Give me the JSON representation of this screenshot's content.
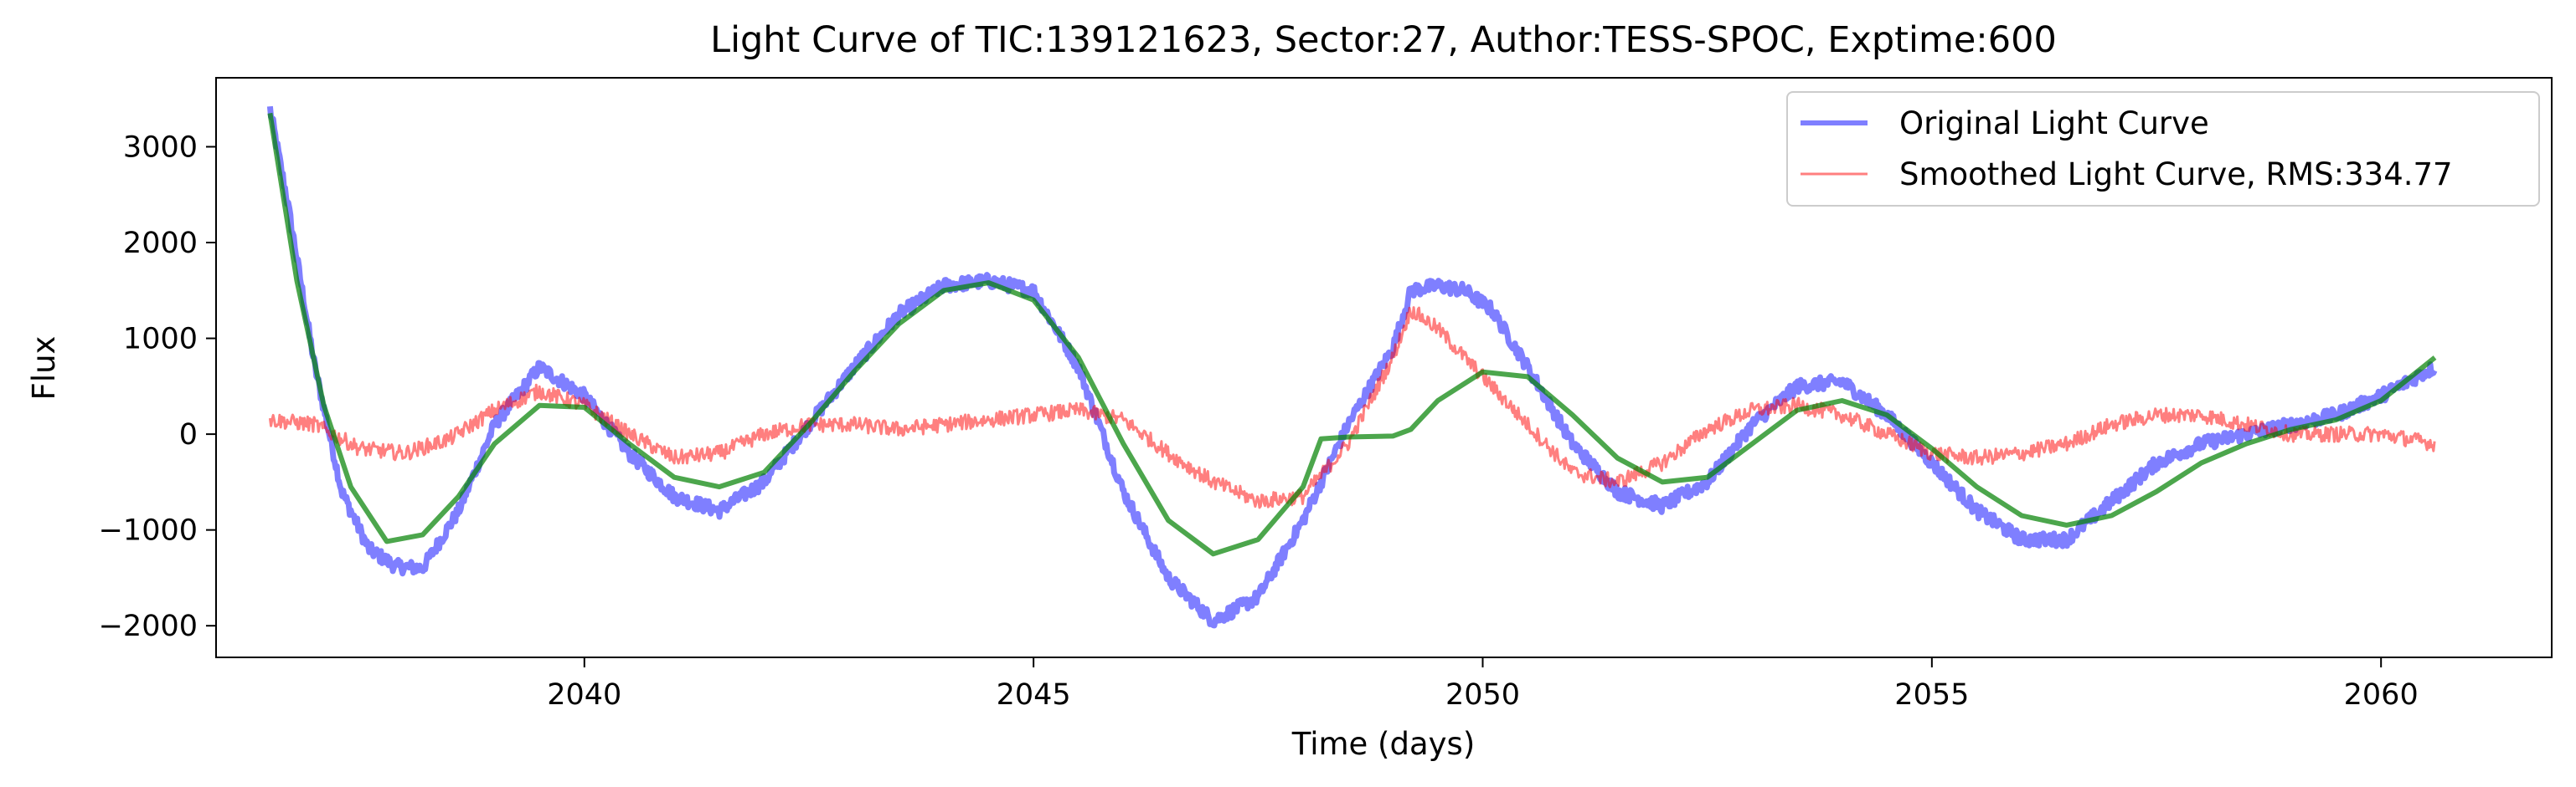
{
  "chart_data": {
    "type": "line",
    "title": "Light Curve of TIC:139121623, Sector:27, Author:TESS-SPOC, Exptime:600",
    "xlabel": "Time (days)",
    "ylabel": "Flux",
    "xlim": [
      2035.9,
      2061.9
    ],
    "ylim": [
      -2330,
      3720
    ],
    "x_ticks": [
      2040,
      2045,
      2050,
      2055,
      2060
    ],
    "x_tick_labels": [
      "2040",
      "2045",
      "2050",
      "2055",
      "2060"
    ],
    "y_ticks": [
      -2000,
      -1000,
      0,
      1000,
      2000,
      3000
    ],
    "y_tick_labels": [
      "−2000",
      "−1000",
      "0",
      "1000",
      "2000",
      "3000"
    ],
    "grid": false,
    "legend_position": "upper right",
    "colors": {
      "original": "#0000ff",
      "smoothed": "#ff0000",
      "trend": "#008000"
    },
    "series": [
      {
        "name": "Original Light Curve",
        "color": "#0000ff",
        "noise": 70,
        "x": [
          2036.5,
          2036.7,
          2037.0,
          2037.3,
          2037.6,
          2037.9,
          2038.2,
          2038.6,
          2039.0,
          2039.5,
          2040.0,
          2040.5,
          2041.0,
          2041.5,
          2042.0,
          2042.5,
          2043.0,
          2043.5,
          2044.0,
          2044.5,
          2045.0,
          2045.5,
          2046.0,
          2046.5,
          2047.0,
          2047.5,
          2048.0,
          2048.5,
          2049.0,
          2049.2,
          2049.5,
          2049.8,
          2050.1,
          2050.5,
          2051.0,
          2051.5,
          2052.0,
          2052.5,
          2053.0,
          2053.5,
          2054.0,
          2054.5,
          2055.0,
          2055.5,
          2056.0,
          2056.5,
          2057.0,
          2057.5,
          2058.0,
          2058.5,
          2059.0,
          2059.5,
          2060.0,
          2060.6
        ],
        "y": [
          3400,
          2400,
          700,
          -600,
          -1200,
          -1380,
          -1400,
          -800,
          100,
          700,
          400,
          -200,
          -650,
          -800,
          -500,
          100,
          700,
          1250,
          1550,
          1600,
          1500,
          700,
          -600,
          -1500,
          -1950,
          -1700,
          -900,
          100,
          900,
          1500,
          1550,
          1500,
          1300,
          700,
          -100,
          -600,
          -750,
          -500,
          100,
          500,
          550,
          200,
          -300,
          -800,
          -1100,
          -1100,
          -700,
          -300,
          -100,
          0,
          100,
          200,
          400,
          700
        ]
      },
      {
        "name": "Smoothed Light Curve, RMS:334.77",
        "color": "#ff0000",
        "noise": 80,
        "x": [
          2036.5,
          2037.0,
          2037.5,
          2038.0,
          2038.5,
          2039.0,
          2039.5,
          2040.0,
          2040.5,
          2041.0,
          2041.5,
          2042.0,
          2042.5,
          2043.0,
          2043.5,
          2044.0,
          2044.5,
          2045.0,
          2045.5,
          2046.0,
          2046.5,
          2047.0,
          2047.5,
          2048.0,
          2048.5,
          2049.0,
          2049.2,
          2049.5,
          2050.0,
          2050.5,
          2051.0,
          2051.5,
          2052.0,
          2052.5,
          2053.0,
          2053.5,
          2054.0,
          2054.5,
          2055.0,
          2055.5,
          2056.0,
          2056.5,
          2057.0,
          2057.5,
          2058.0,
          2058.5,
          2059.0,
          2059.5,
          2060.0,
          2060.6
        ],
        "y": [
          150,
          100,
          -150,
          -200,
          -50,
          250,
          450,
          300,
          0,
          -250,
          -200,
          0,
          100,
          100,
          50,
          100,
          150,
          200,
          250,
          150,
          -200,
          -500,
          -700,
          -650,
          -100,
          800,
          1300,
          1100,
          600,
          100,
          -400,
          -500,
          -300,
          50,
          250,
          300,
          200,
          0,
          -200,
          -250,
          -200,
          -100,
          100,
          200,
          200,
          100,
          0,
          0,
          0,
          -100
        ]
      },
      {
        "name": "",
        "color": "#008000",
        "noise": 0,
        "x": [
          2036.5,
          2036.8,
          2037.1,
          2037.4,
          2037.8,
          2038.2,
          2038.6,
          2039.0,
          2039.5,
          2040.0,
          2040.5,
          2041.0,
          2041.5,
          2042.0,
          2042.5,
          2043.0,
          2043.5,
          2044.0,
          2044.5,
          2045.0,
          2045.5,
          2046.0,
          2046.5,
          2047.0,
          2047.5,
          2048.0,
          2048.2,
          2048.5,
          2049.0,
          2049.2,
          2049.5,
          2050.0,
          2050.5,
          2051.0,
          2051.5,
          2052.0,
          2052.5,
          2053.0,
          2053.5,
          2054.0,
          2054.5,
          2055.0,
          2055.5,
          2056.0,
          2056.5,
          2057.0,
          2057.5,
          2058.0,
          2058.5,
          2059.0,
          2059.5,
          2060.0,
          2060.6
        ],
        "y": [
          3350,
          1600,
          300,
          -550,
          -1120,
          -1050,
          -650,
          -100,
          300,
          280,
          -100,
          -450,
          -550,
          -400,
          100,
          650,
          1150,
          1500,
          1580,
          1400,
          800,
          -100,
          -900,
          -1250,
          -1100,
          -550,
          -50,
          -30,
          -20,
          50,
          350,
          650,
          600,
          200,
          -250,
          -500,
          -450,
          -100,
          250,
          350,
          200,
          -150,
          -550,
          -850,
          -950,
          -850,
          -600,
          -300,
          -100,
          50,
          150,
          350,
          800
        ]
      }
    ]
  }
}
